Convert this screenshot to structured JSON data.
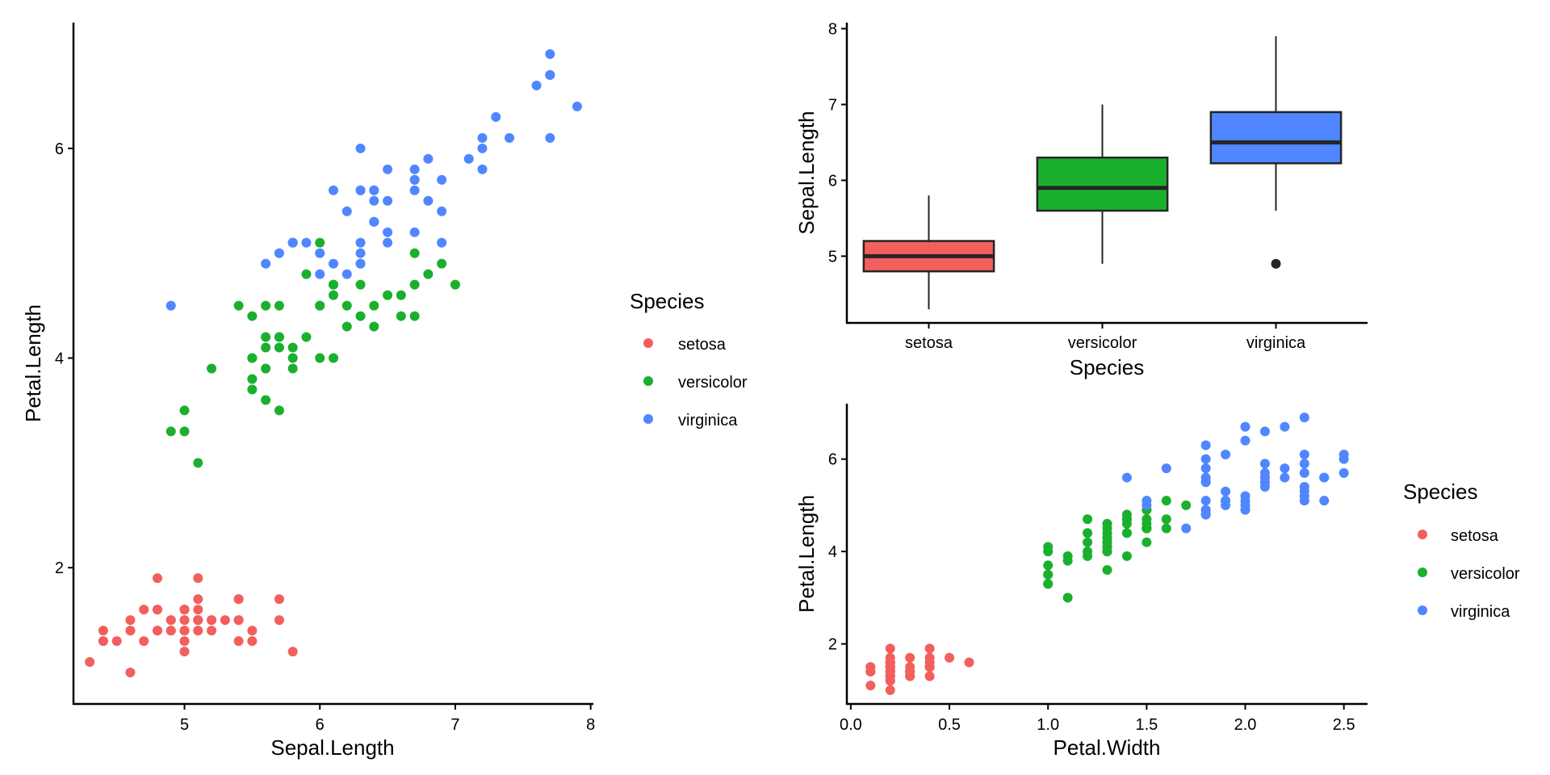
{
  "colors": {
    "setosa": "#F25F5C",
    "versicolor": "#1AB02E",
    "virginica": "#5086FF",
    "median": "#252525",
    "outlier": "#252525"
  },
  "chart_data": [
    {
      "id": "scatter-sepal-petal",
      "type": "scatter",
      "title": "",
      "xlabel": "Sepal.Length",
      "ylabel": "Petal.Length",
      "xlim": [
        4.18,
        8.02
      ],
      "ylim": [
        0.7,
        7.2
      ],
      "xticks": [
        5,
        6,
        7,
        8
      ],
      "yticks": [
        2,
        4,
        6
      ],
      "grid": false,
      "legend": {
        "title": "Species",
        "placement": "right",
        "entries": [
          "setosa",
          "versicolor",
          "virginica"
        ]
      },
      "x_var": "sepal_length",
      "y_var": "petal_length"
    },
    {
      "id": "boxplot-sepal",
      "type": "box",
      "title": "",
      "xlabel": "Species",
      "ylabel": "Sepal.Length",
      "ylim": [
        4.12,
        8.08
      ],
      "yticks": [
        5,
        6,
        7,
        8
      ],
      "grid": false,
      "categories": [
        "setosa",
        "versicolor",
        "virginica"
      ],
      "boxes": [
        {
          "name": "setosa",
          "whisker_low": 4.3,
          "q1": 4.8,
          "median": 5.0,
          "q3": 5.2,
          "whisker_high": 5.8,
          "outliers": []
        },
        {
          "name": "versicolor",
          "whisker_low": 4.9,
          "q1": 5.6,
          "median": 5.9,
          "q3": 6.3,
          "whisker_high": 7.0,
          "outliers": []
        },
        {
          "name": "virginica",
          "whisker_low": 5.6,
          "q1": 6.225,
          "median": 6.5,
          "q3": 6.9,
          "whisker_high": 7.9,
          "outliers": [
            4.9
          ]
        }
      ]
    },
    {
      "id": "scatter-petalwidth-petal",
      "type": "scatter",
      "title": "",
      "xlabel": "Petal.Width",
      "ylabel": "Petal.Length",
      "xlim": [
        -0.02,
        2.62
      ],
      "ylim": [
        0.7,
        7.2
      ],
      "xticks": [
        0.0,
        0.5,
        1.0,
        1.5,
        2.0,
        2.5
      ],
      "xtick_labels": [
        "0.0",
        "0.5",
        "1.0",
        "1.5",
        "2.0",
        "2.5"
      ],
      "yticks": [
        2,
        4,
        6
      ],
      "grid": false,
      "legend": {
        "title": "Species",
        "placement": "right",
        "entries": [
          "setosa",
          "versicolor",
          "virginica"
        ]
      },
      "x_var": "petal_width",
      "y_var": "petal_length"
    }
  ],
  "iris": {
    "setosa": {
      "sepal_length": [
        5.1,
        4.9,
        4.7,
        4.6,
        5.0,
        5.4,
        4.6,
        5.0,
        4.4,
        4.9,
        5.4,
        4.8,
        4.8,
        4.3,
        5.8,
        5.7,
        5.4,
        5.1,
        5.7,
        5.1,
        5.4,
        5.1,
        4.6,
        5.1,
        4.8,
        5.0,
        5.0,
        5.2,
        5.2,
        4.7,
        4.8,
        5.4,
        5.2,
        5.5,
        4.9,
        5.0,
        5.5,
        4.9,
        4.4,
        5.1,
        5.0,
        4.5,
        4.4,
        5.0,
        5.1,
        4.8,
        5.1,
        4.6,
        5.3,
        5.0
      ],
      "petal_length": [
        1.4,
        1.4,
        1.3,
        1.5,
        1.4,
        1.7,
        1.4,
        1.5,
        1.4,
        1.5,
        1.5,
        1.6,
        1.4,
        1.1,
        1.2,
        1.5,
        1.3,
        1.4,
        1.7,
        1.5,
        1.7,
        1.5,
        1.0,
        1.7,
        1.9,
        1.6,
        1.6,
        1.5,
        1.4,
        1.6,
        1.6,
        1.5,
        1.5,
        1.4,
        1.5,
        1.2,
        1.3,
        1.4,
        1.3,
        1.5,
        1.3,
        1.3,
        1.3,
        1.6,
        1.9,
        1.4,
        1.6,
        1.4,
        1.5,
        1.4
      ],
      "petal_width": [
        0.2,
        0.2,
        0.2,
        0.2,
        0.2,
        0.4,
        0.3,
        0.2,
        0.2,
        0.1,
        0.2,
        0.2,
        0.1,
        0.1,
        0.2,
        0.4,
        0.4,
        0.3,
        0.3,
        0.3,
        0.2,
        0.4,
        0.2,
        0.5,
        0.2,
        0.2,
        0.4,
        0.2,
        0.2,
        0.2,
        0.2,
        0.4,
        0.1,
        0.2,
        0.2,
        0.2,
        0.2,
        0.1,
        0.2,
        0.2,
        0.3,
        0.3,
        0.2,
        0.6,
        0.4,
        0.3,
        0.2,
        0.2,
        0.2,
        0.2
      ]
    },
    "versicolor": {
      "sepal_length": [
        7.0,
        6.4,
        6.9,
        5.5,
        6.5,
        5.7,
        6.3,
        4.9,
        6.6,
        5.2,
        5.0,
        5.9,
        6.0,
        6.1,
        5.6,
        6.7,
        5.6,
        5.8,
        6.2,
        5.6,
        5.9,
        6.1,
        6.3,
        6.1,
        6.4,
        6.6,
        6.8,
        6.7,
        6.0,
        5.7,
        5.5,
        5.5,
        5.8,
        6.0,
        5.4,
        6.0,
        6.7,
        6.3,
        5.6,
        5.5,
        5.5,
        6.1,
        5.8,
        5.0,
        5.6,
        5.7,
        5.7,
        6.2,
        5.1,
        5.7
      ],
      "petal_length": [
        4.7,
        4.5,
        4.9,
        4.0,
        4.6,
        4.5,
        4.7,
        3.3,
        4.6,
        3.9,
        3.5,
        4.2,
        4.0,
        4.7,
        3.6,
        4.4,
        4.5,
        4.1,
        4.5,
        3.9,
        4.8,
        4.0,
        4.9,
        4.7,
        4.3,
        4.4,
        4.8,
        5.0,
        4.5,
        3.5,
        3.8,
        3.7,
        3.9,
        5.1,
        4.5,
        4.5,
        4.7,
        4.4,
        4.1,
        4.0,
        4.4,
        4.6,
        4.0,
        3.3,
        4.2,
        4.2,
        4.2,
        4.3,
        3.0,
        4.1
      ],
      "petal_width": [
        1.4,
        1.5,
        1.5,
        1.3,
        1.5,
        1.3,
        1.6,
        1.0,
        1.3,
        1.4,
        1.0,
        1.5,
        1.0,
        1.4,
        1.3,
        1.4,
        1.5,
        1.0,
        1.5,
        1.1,
        1.8,
        1.3,
        1.5,
        1.2,
        1.3,
        1.4,
        1.4,
        1.7,
        1.5,
        1.0,
        1.1,
        1.0,
        1.2,
        1.6,
        1.5,
        1.6,
        1.5,
        1.3,
        1.3,
        1.3,
        1.2,
        1.4,
        1.2,
        1.0,
        1.3,
        1.2,
        1.3,
        1.3,
        1.1,
        1.3
      ]
    },
    "virginica": {
      "sepal_length": [
        6.3,
        5.8,
        7.1,
        6.3,
        6.5,
        7.6,
        4.9,
        7.3,
        6.7,
        7.2,
        6.5,
        6.4,
        6.8,
        5.7,
        5.8,
        6.4,
        6.5,
        7.7,
        7.7,
        6.0,
        6.9,
        5.6,
        7.7,
        6.3,
        6.7,
        7.2,
        6.2,
        6.1,
        6.4,
        7.2,
        7.4,
        7.9,
        6.4,
        6.3,
        6.1,
        7.7,
        6.3,
        6.4,
        6.0,
        6.9,
        6.7,
        6.9,
        5.8,
        6.8,
        6.7,
        6.7,
        6.3,
        6.5,
        6.2,
        5.9
      ],
      "petal_length": [
        6.0,
        5.1,
        5.9,
        5.6,
        5.8,
        6.6,
        4.5,
        6.3,
        5.8,
        6.1,
        5.1,
        5.3,
        5.5,
        5.0,
        5.1,
        5.3,
        5.5,
        6.7,
        6.9,
        5.0,
        5.7,
        4.9,
        6.7,
        4.9,
        5.7,
        6.0,
        4.8,
        4.9,
        5.6,
        5.8,
        6.1,
        6.4,
        5.6,
        5.1,
        5.6,
        6.1,
        5.6,
        5.5,
        4.8,
        5.4,
        5.6,
        5.1,
        5.1,
        5.9,
        5.7,
        5.2,
        5.0,
        5.2,
        5.4,
        5.1
      ],
      "petal_width": [
        2.5,
        1.9,
        2.1,
        1.8,
        2.2,
        2.1,
        1.7,
        1.8,
        1.8,
        2.5,
        2.0,
        1.9,
        2.1,
        2.0,
        2.4,
        2.3,
        1.8,
        2.2,
        2.3,
        1.5,
        2.3,
        2.0,
        2.0,
        1.8,
        2.1,
        1.8,
        1.8,
        1.8,
        2.1,
        1.6,
        1.9,
        2.0,
        2.2,
        1.5,
        1.4,
        2.3,
        2.4,
        1.8,
        1.8,
        2.1,
        2.4,
        2.3,
        1.9,
        2.3,
        2.5,
        2.3,
        1.9,
        2.0,
        2.3,
        1.8
      ]
    }
  }
}
